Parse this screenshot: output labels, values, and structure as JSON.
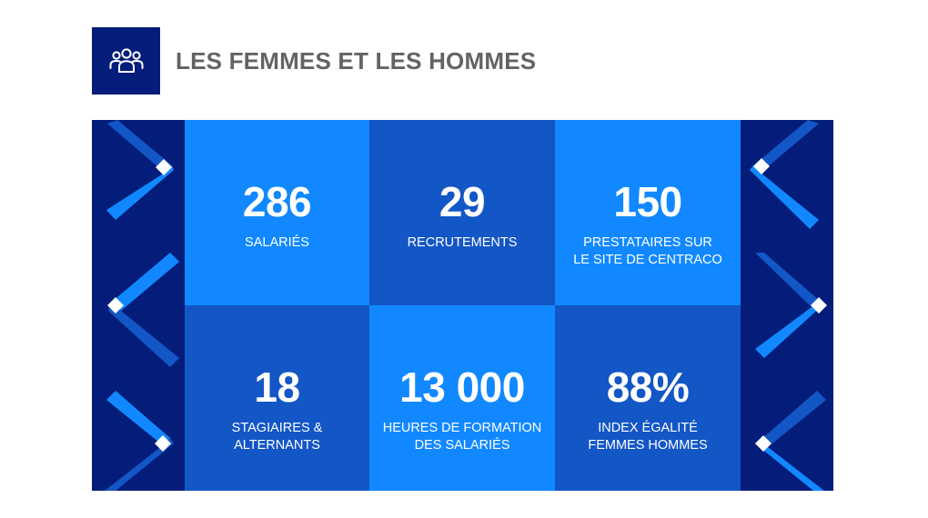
{
  "header": {
    "title": "LES FEMMES ET LES HOMMES",
    "icon": "people-group-icon"
  },
  "colors": {
    "navy": "#041d7a",
    "blue_light": "#1188ff",
    "blue_mid": "#1356c6",
    "title_gray": "#636363"
  },
  "stats": [
    {
      "value": "286",
      "label": "SALARIÉS"
    },
    {
      "value": "29",
      "label": "RECRUTEMENTS"
    },
    {
      "value": "150",
      "label": "PRESTATAIRES SUR\nLE SITE DE CENTRACO"
    },
    {
      "value": "18",
      "label": "STAGIAIRES & ALTERNANTS"
    },
    {
      "value": "13 000",
      "label": "HEURES DE FORMATION\nDES SALARIÉS"
    },
    {
      "value": "88%",
      "label": "INDEX ÉGALITÉ\nFEMMES HOMMES"
    }
  ]
}
